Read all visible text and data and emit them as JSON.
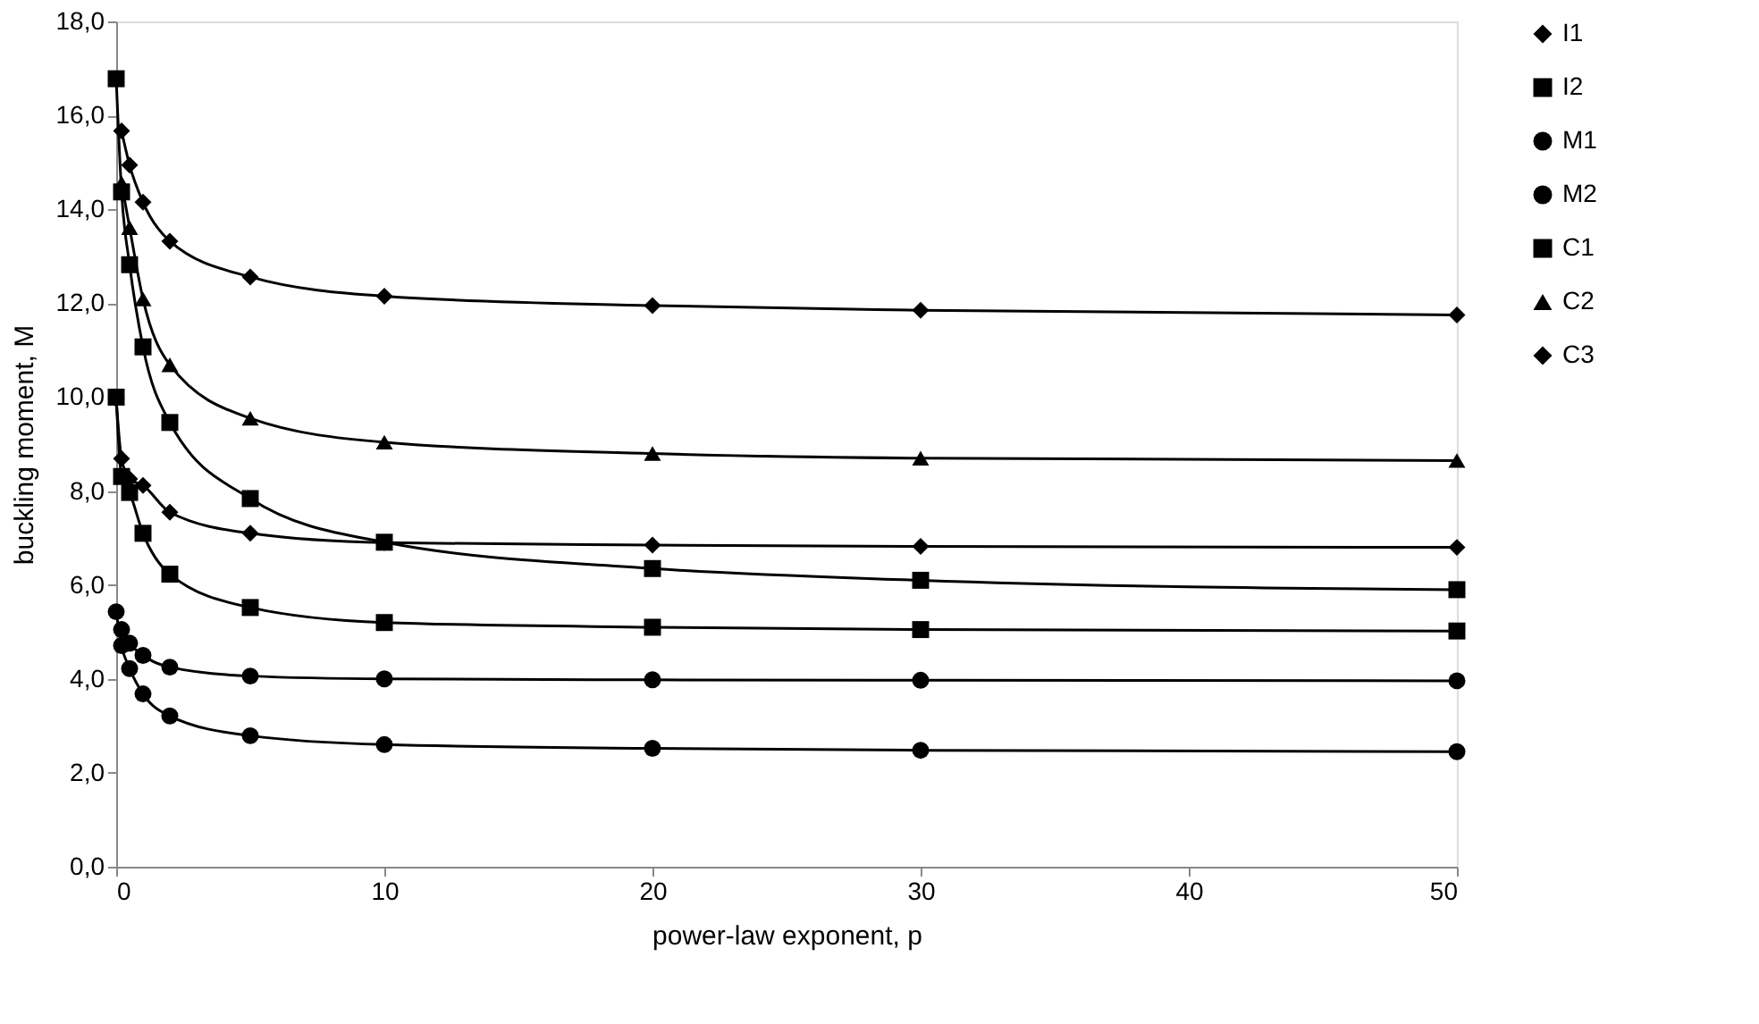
{
  "chart_data": {
    "type": "line",
    "xlabel": "power-law exponent, p",
    "ylabel": "buckling moment, M",
    "x": [
      0,
      0.2,
      0.5,
      1,
      2,
      5,
      10,
      20,
      30,
      50
    ],
    "series": [
      {
        "name": "I1",
        "color": "#000000",
        "marker": "diamond",
        "values": [
          9.96,
          8.69,
          8.26,
          8.12,
          7.55,
          7.1,
          6.9,
          6.85,
          6.82,
          6.8
        ]
      },
      {
        "name": "I2",
        "color": "#000000",
        "marker": "square",
        "values": [
          10.0,
          8.31,
          7.97,
          7.1,
          6.23,
          5.52,
          5.2,
          5.1,
          5.05,
          5.02
        ]
      },
      {
        "name": "M1",
        "color": "#000000",
        "marker": "circle",
        "values": [
          null,
          5.05,
          4.76,
          4.5,
          4.25,
          4.06,
          4.0,
          3.98,
          3.97,
          3.96
        ]
      },
      {
        "name": "M2",
        "color": "#000000",
        "marker": "circle",
        "values": [
          5.43,
          4.71,
          4.22,
          3.68,
          3.21,
          2.79,
          2.6,
          2.52,
          2.48,
          2.45
        ]
      },
      {
        "name": "C1",
        "color": "#000000",
        "marker": "square",
        "values": [
          16.78,
          14.37,
          12.82,
          11.07,
          9.46,
          7.84,
          6.91,
          6.35,
          6.1,
          5.9
        ]
      },
      {
        "name": "C2",
        "color": "#000000",
        "marker": "triangle",
        "values": [
          null,
          14.56,
          13.61,
          12.09,
          10.69,
          9.55,
          9.04,
          8.8,
          8.7,
          8.65
        ]
      },
      {
        "name": "C3",
        "color": "#000000",
        "marker": "diamond",
        "values": [
          null,
          15.67,
          14.94,
          14.15,
          13.32,
          12.56,
          12.15,
          11.95,
          11.85,
          11.75
        ]
      }
    ],
    "xlim": [
      0,
      50
    ],
    "xticks": [
      0,
      10,
      20,
      30,
      40,
      50
    ],
    "ylim": [
      0,
      18
    ],
    "yticks": [
      {
        "value": 0,
        "label": "0,0"
      },
      {
        "value": 2,
        "label": "2,0"
      },
      {
        "value": 4,
        "label": "4,0"
      },
      {
        "value": 6,
        "label": "6,0"
      },
      {
        "value": 8,
        "label": "8,0"
      },
      {
        "value": 10,
        "label": "10,0"
      },
      {
        "value": 12,
        "label": "12,0"
      },
      {
        "value": 14,
        "label": "14,0"
      },
      {
        "value": 16,
        "label": "16,0"
      },
      {
        "value": 18,
        "label": "18,0"
      }
    ],
    "grid": false,
    "legend": "right",
    "line_style": "solid"
  }
}
